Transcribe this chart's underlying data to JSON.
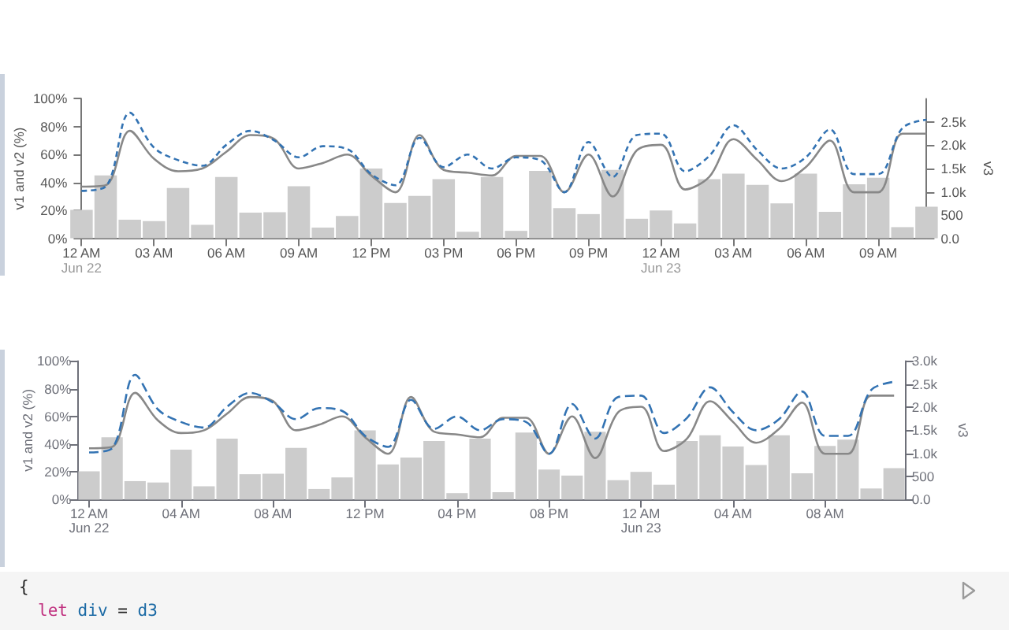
{
  "chart_data": [
    {
      "type": "bar",
      "x": [
        "--06-22T00:00",
        "--06-22T01:00",
        "--06-22T02:00",
        "--06-22T03:00",
        "--06-22T04:00",
        "--06-22T05:00",
        "--06-22T06:00",
        "--06-22T07:00",
        "--06-22T08:00",
        "--06-22T09:00",
        "--06-22T10:00",
        "--06-22T11:00",
        "--06-22T12:00",
        "--06-22T13:00",
        "--06-22T14:00",
        "--06-22T15:00",
        "--06-22T16:00",
        "--06-22T17:00",
        "--06-22T18:00",
        "--06-22T19:00",
        "--06-22T20:00",
        "--06-22T21:00",
        "--06-22T22:00",
        "--06-22T23:00",
        "--06-23T00:00",
        "--06-23T01:00",
        "--06-23T02:00",
        "--06-23T03:00",
        "--06-23T04:00",
        "--06-23T05:00",
        "--06-23T06:00",
        "--06-23T07:00",
        "--06-23T08:00",
        "--06-23T09:00",
        "--06-23T10:00",
        "--06-23T11:00"
      ],
      "xlim": [
        "--06-22T00:00",
        "--06-23T11:00"
      ],
      "xticks": [
        {
          "value": "--06-22T00:00",
          "label": "12 AM\nJun 22"
        },
        {
          "value": "--06-22T03:00",
          "label": "03 AM"
        },
        {
          "value": "--06-22T06:00",
          "label": "06 AM"
        },
        {
          "value": "--06-22T09:00",
          "label": "09 AM"
        },
        {
          "value": "--06-22T12:00",
          "label": "12 PM"
        },
        {
          "value": "--06-22T15:00",
          "label": "03 PM"
        },
        {
          "value": "--06-22T18:00",
          "label": "06 PM"
        },
        {
          "value": "--06-22T21:00",
          "label": "09 PM"
        },
        {
          "value": "--06-23T00:00",
          "label": "12 AM\nJun 23"
        },
        {
          "value": "--06-23T03:00",
          "label": "03 AM"
        },
        {
          "value": "--06-23T06:00",
          "label": "06 AM"
        },
        {
          "value": "--06-23T09:00",
          "label": "09 AM"
        }
      ],
      "ylabel": "v1 and v2 (%)",
      "y2label": "v3",
      "ylim": [
        0,
        100
      ],
      "yticks": [
        {
          "value": 0,
          "label": "0%"
        },
        {
          "value": 20,
          "label": "20%"
        },
        {
          "value": 40,
          "label": "40%"
        },
        {
          "value": 60,
          "label": "60%"
        },
        {
          "value": 80,
          "label": "80%"
        },
        {
          "value": 100,
          "label": "100%"
        }
      ],
      "y2lim": [
        0,
        3000
      ],
      "y2ticks": [
        {
          "value": 0,
          "label": "0.0"
        },
        500,
        {
          "value": 1000,
          "label": "1.0k"
        },
        {
          "value": 1500,
          "label": "1.5k"
        },
        {
          "value": 2000,
          "label": "2.0k"
        },
        {
          "value": 2500,
          "label": "2.5k"
        }
      ],
      "grid": false,
      "marker": "none",
      "series": [
        {
          "type": "bar",
          "axis": "y2",
          "color": "#cccccc",
          "values": [
            610,
            1350,
            400,
            370,
            1080,
            290,
            1320,
            550,
            560,
            1120,
            230,
            480,
            1500,
            760,
            910,
            1270,
            140,
            1320,
            160,
            1450,
            650,
            520,
            1470,
            420,
            600,
            320,
            1270,
            1390,
            1150,
            750,
            1390,
            570,
            1160,
            1300,
            240,
            680
          ]
        },
        {
          "type": "line",
          "color": "#888888",
          "line_style": "solid",
          "values": [
            37,
            38,
            77,
            57,
            48,
            50,
            62,
            74,
            71,
            50,
            54,
            60,
            45,
            33,
            74,
            49,
            47,
            45,
            59,
            59,
            33,
            60,
            30,
            63,
            67,
            35,
            44,
            71,
            56,
            41,
            51,
            70,
            33,
            33,
            75,
            75
          ]
        },
        {
          "type": "line",
          "color": "#3373b3",
          "line_style": "dashed",
          "values": [
            34,
            37,
            90,
            65,
            56,
            52,
            67,
            77,
            70,
            58,
            66,
            64,
            46,
            38,
            72,
            51,
            60,
            50,
            58,
            56,
            33,
            69,
            44,
            74,
            75,
            48,
            59,
            81,
            63,
            50,
            58,
            78,
            46,
            46,
            79,
            85
          ]
        }
      ]
    },
    {
      "type": "bar",
      "x": [
        "--06-22T00:00",
        "--06-22T01:00",
        "--06-22T02:00",
        "--06-22T03:00",
        "--06-22T04:00",
        "--06-22T05:00",
        "--06-22T06:00",
        "--06-22T07:00",
        "--06-22T08:00",
        "--06-22T09:00",
        "--06-22T10:00",
        "--06-22T11:00",
        "--06-22T12:00",
        "--06-22T13:00",
        "--06-22T14:00",
        "--06-22T15:00",
        "--06-22T16:00",
        "--06-22T17:00",
        "--06-22T18:00",
        "--06-22T19:00",
        "--06-22T20:00",
        "--06-22T21:00",
        "--06-22T22:00",
        "--06-22T23:00",
        "--06-23T00:00",
        "--06-23T01:00",
        "--06-23T02:00",
        "--06-23T03:00",
        "--06-23T04:00",
        "--06-23T05:00",
        "--06-23T06:00",
        "--06-23T07:00",
        "--06-23T08:00",
        "--06-23T09:00",
        "--06-23T10:00",
        "--06-23T11:00"
      ],
      "xlim": [
        "--06-21T23:30",
        "--06-23T11:30"
      ],
      "xticks": [
        {
          "value": "--06-22T00:00",
          "label": "12 AM\nJun 22"
        },
        {
          "value": "--06-22T04:00",
          "label": "04 AM"
        },
        {
          "value": "--06-22T08:00",
          "label": "08 AM"
        },
        {
          "value": "--06-22T12:00",
          "label": "12 PM"
        },
        {
          "value": "--06-22T16:00",
          "label": "04 PM"
        },
        {
          "value": "--06-22T20:00",
          "label": "08 PM"
        },
        {
          "value": "--06-23T00:00",
          "label": "12 AM\nJun 23"
        },
        {
          "value": "--06-23T04:00",
          "label": "04 AM"
        },
        {
          "value": "--06-23T08:00",
          "label": "08 AM"
        }
      ],
      "ylabel": "v1 and v2 (%)",
      "y2label": "v3",
      "ylim": [
        0,
        100
      ],
      "yticks": [
        {
          "value": 0,
          "label": "0%"
        },
        {
          "value": 20,
          "label": "20%"
        },
        {
          "value": 40,
          "label": "40%"
        },
        {
          "value": 60,
          "label": "60%"
        },
        {
          "value": 80,
          "label": "80%"
        },
        {
          "value": 100,
          "label": "100%"
        }
      ],
      "y2lim": [
        0,
        3000
      ],
      "y2ticks": [
        {
          "value": 0,
          "label": "0.0"
        },
        500,
        {
          "value": 1000,
          "label": "1.0k"
        },
        {
          "value": 1500,
          "label": "1.5k"
        },
        {
          "value": 2000,
          "label": "2.0k"
        },
        {
          "value": 2500,
          "label": "2.5k"
        },
        {
          "value": 3000,
          "label": "3.0k"
        }
      ],
      "grid": false,
      "marker": "none",
      "series": [
        {
          "type": "bar",
          "axis": "y2",
          "color": "#cccccc",
          "values": [
            610,
            1350,
            400,
            370,
            1080,
            290,
            1320,
            550,
            560,
            1120,
            230,
            480,
            1500,
            760,
            910,
            1270,
            140,
            1320,
            160,
            1450,
            650,
            520,
            1470,
            420,
            600,
            320,
            1270,
            1390,
            1150,
            750,
            1390,
            570,
            1160,
            1300,
            240,
            680
          ]
        },
        {
          "type": "line",
          "color": "#888888",
          "line_style": "solid",
          "values": [
            37,
            38,
            77,
            57,
            48,
            50,
            62,
            74,
            71,
            50,
            54,
            60,
            45,
            33,
            74,
            49,
            47,
            45,
            59,
            59,
            33,
            60,
            30,
            63,
            67,
            35,
            44,
            71,
            56,
            41,
            51,
            70,
            33,
            33,
            75,
            75
          ]
        },
        {
          "type": "line",
          "color": "#3373b3",
          "line_style": "dashed",
          "values": [
            34,
            37,
            90,
            65,
            56,
            52,
            67,
            77,
            70,
            58,
            66,
            64,
            46,
            38,
            72,
            51,
            60,
            50,
            58,
            56,
            33,
            69,
            44,
            74,
            75,
            48,
            59,
            81,
            63,
            50,
            58,
            78,
            46,
            46,
            79,
            85
          ]
        }
      ]
    },
    {
      "type": "other",
      "annotations": [
        "{",
        "let div = d3"
      ]
    }
  ]
}
